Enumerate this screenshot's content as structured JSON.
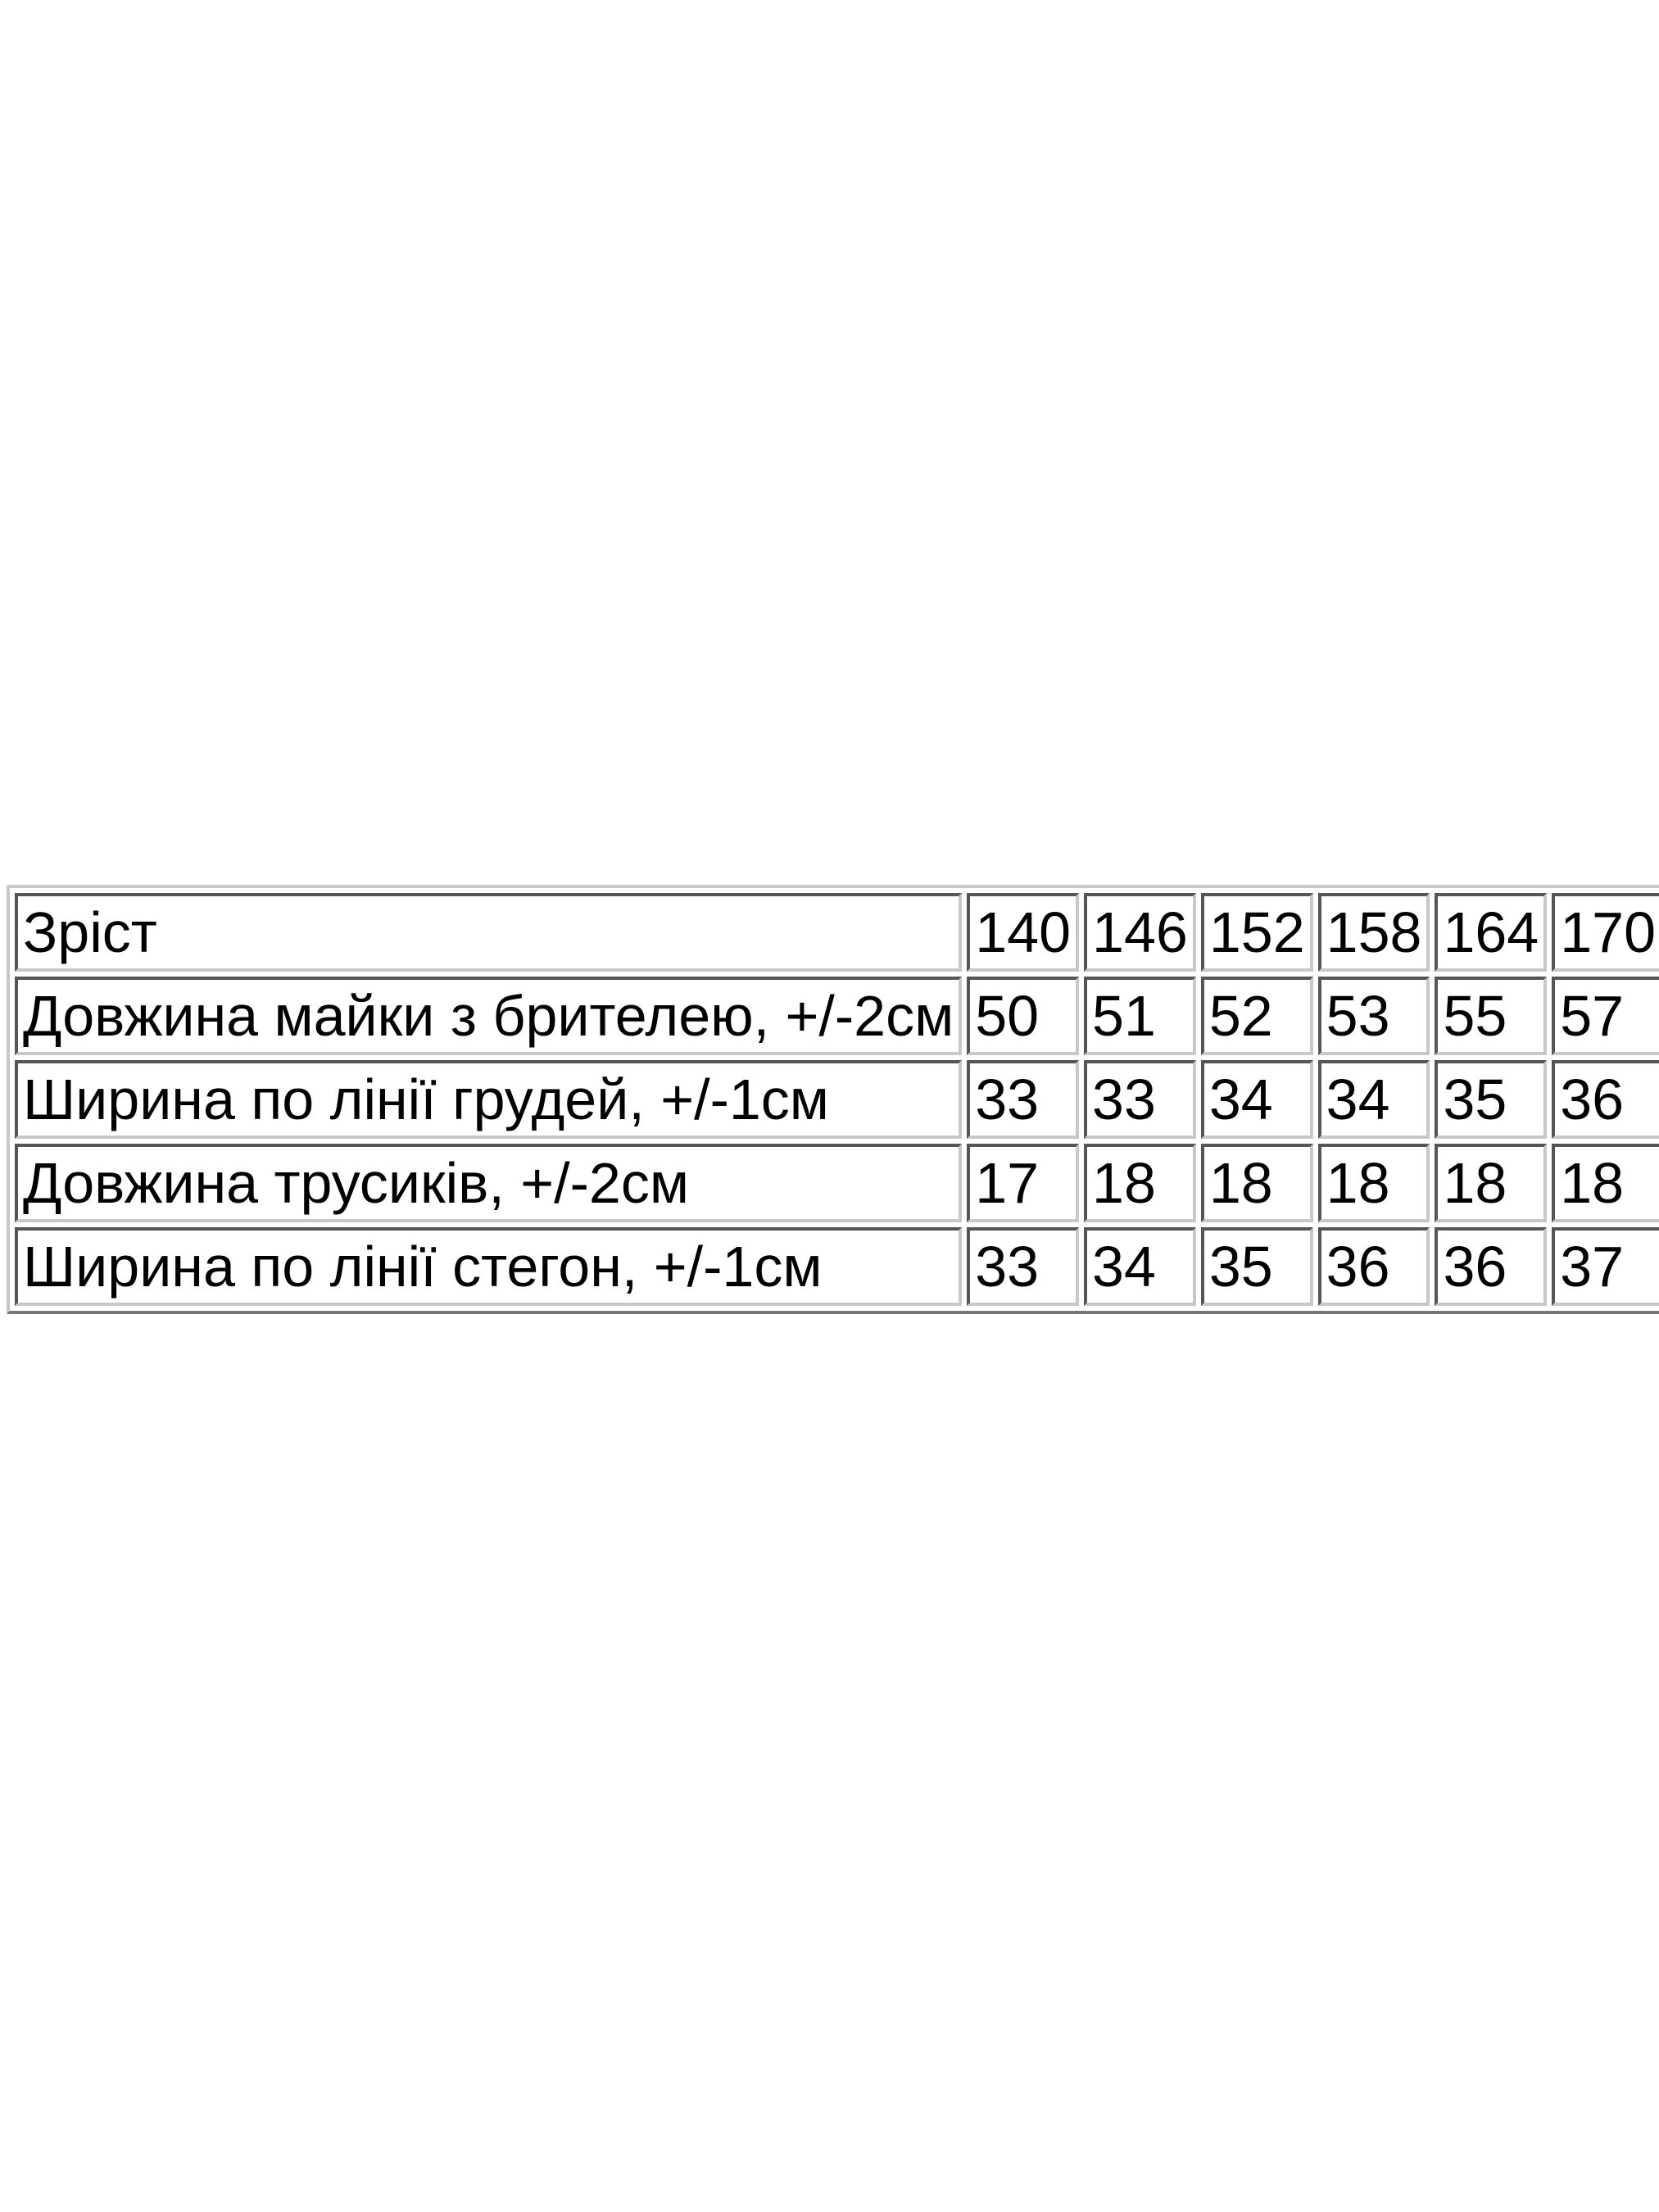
{
  "table": {
    "header": {
      "label": "Зріст",
      "sizes": [
        "140",
        "146",
        "152",
        "158",
        "164",
        "170"
      ]
    },
    "rows": [
      {
        "label": "Довжина майки з брителею, +/-2см",
        "values": [
          "50",
          "51",
          "52",
          "53",
          "55",
          "57"
        ]
      },
      {
        "label": "Ширина по лінії грудей, +/-1см",
        "values": [
          "33",
          "33",
          "34",
          "34",
          "35",
          "36"
        ]
      },
      {
        "label": "Довжина трусиків, +/-2см",
        "values": [
          "17",
          "18",
          "18",
          "18",
          "18",
          "18"
        ]
      },
      {
        "label": "Ширина по лінії стегон, +/-1см",
        "values": [
          "33",
          "34",
          "35",
          "36",
          "36",
          "37"
        ]
      }
    ]
  }
}
